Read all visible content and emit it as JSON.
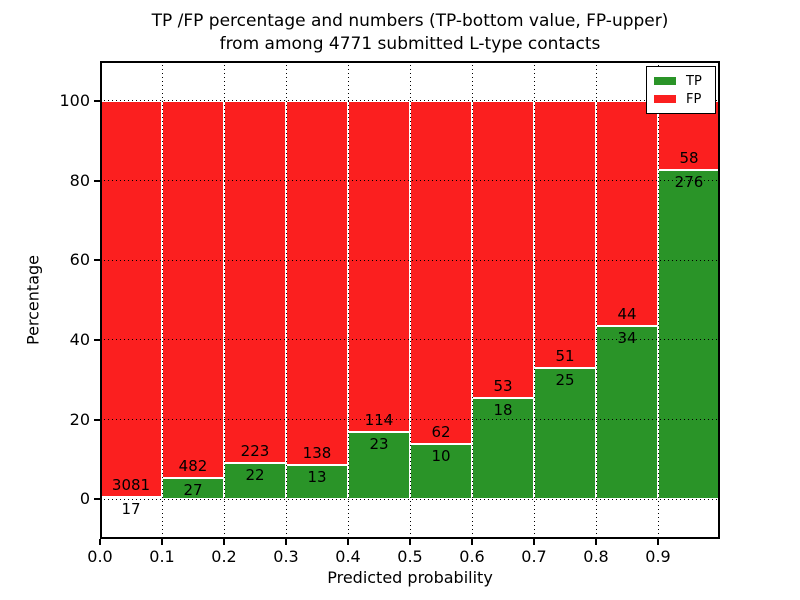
{
  "figure": {
    "title_line1": "TP /FP percentage and numbers (TP-bottom value, FP-upper)",
    "title_line2": "from among 4771 submitted L-type contacts",
    "xlabel": "Predicted probability",
    "ylabel": "Percentage"
  },
  "legend": {
    "position": "upper right",
    "items": [
      {
        "label": "TP",
        "color": "#2a9428"
      },
      {
        "label": "FP",
        "color": "#fb1f1f"
      }
    ]
  },
  "colors": {
    "tp": "#2a9428",
    "fp": "#fb1f1f",
    "grid": "#000000",
    "spine": "#000000",
    "bar_edge": "#ffffff",
    "background": "#ffffff"
  },
  "chart_data": {
    "type": "bar",
    "stacked": true,
    "normalized": "each bin scaled so TP%+FP% = 100",
    "title": "TP /FP percentage and numbers (TP-bottom value, FP-upper) from among 4771 submitted L-type contacts",
    "xlabel": "Predicted probability",
    "ylabel": "Percentage",
    "xlim": [
      0.0,
      1.0
    ],
    "ylim": [
      -10,
      110
    ],
    "grid": "dotted",
    "bin_width": 0.1,
    "bin_starts": [
      0.0,
      0.1,
      0.2,
      0.3,
      0.4,
      0.5,
      0.6,
      0.7,
      0.8,
      0.9
    ],
    "x_tick_labels": [
      "0.0",
      "0.1",
      "0.2",
      "0.3",
      "0.4",
      "0.5",
      "0.6",
      "0.7",
      "0.8",
      "0.9"
    ],
    "y_ticks": [
      0,
      20,
      40,
      60,
      80,
      100
    ],
    "y_tick_labels": [
      "0",
      "20",
      "40",
      "60",
      "80",
      "100"
    ],
    "series": [
      {
        "name": "TP",
        "color": "#2a9428",
        "counts": [
          17,
          27,
          22,
          13,
          23,
          10,
          18,
          25,
          34,
          276
        ]
      },
      {
        "name": "FP",
        "color": "#fb1f1f",
        "counts": [
          3081,
          482,
          223,
          138,
          114,
          62,
          53,
          51,
          44,
          58
        ]
      }
    ],
    "tp_percent_by_bin": [
      0.55,
      5.3,
      8.98,
      8.61,
      16.79,
      13.89,
      25.35,
      32.89,
      43.59,
      82.63
    ],
    "total_contacts": 4771
  }
}
